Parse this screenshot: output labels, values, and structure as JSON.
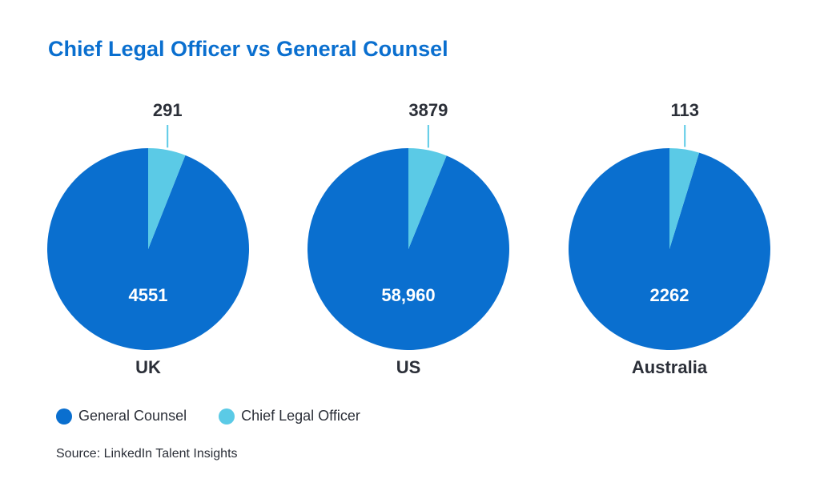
{
  "chart_data": {
    "type": "pie",
    "title": "Chief Legal Officer vs General Counsel",
    "series_names": [
      "General Counsel",
      "Chief Legal Officer"
    ],
    "colors": {
      "General Counsel": "#0a6fcf",
      "Chief Legal Officer": "#5bcae6"
    },
    "pies": [
      {
        "country": "UK",
        "general_counsel": 4551,
        "general_counsel_label": "4551",
        "chief_legal_officer": 291,
        "chief_legal_officer_label": "291"
      },
      {
        "country": "US",
        "general_counsel": 58960,
        "general_counsel_label": "58,960",
        "chief_legal_officer": 3879,
        "chief_legal_officer_label": "3879"
      },
      {
        "country": "Australia",
        "general_counsel": 2262,
        "general_counsel_label": "2262",
        "chief_legal_officer": 113,
        "chief_legal_officer_label": "113"
      }
    ],
    "legend_placement": "bottom-left"
  },
  "source": "Source: LinkedIn Talent Insights",
  "label_colors": {
    "inside": "#ffffff",
    "outside": "#2b2f38"
  }
}
